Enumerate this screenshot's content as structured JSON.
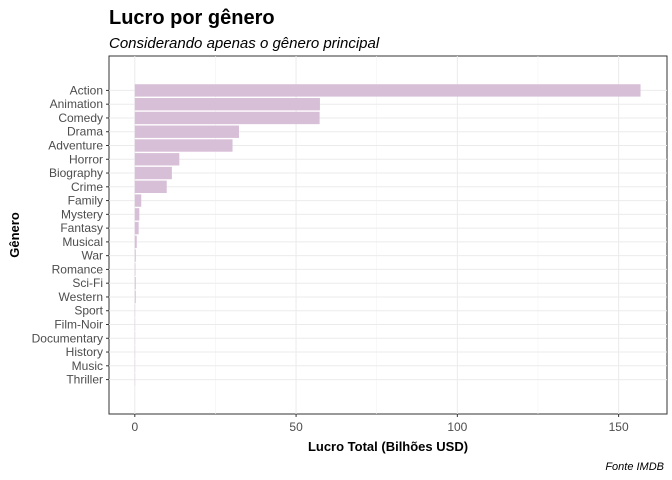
{
  "chart_data": {
    "type": "bar",
    "orientation": "horizontal",
    "title": "Lucro por gênero",
    "subtitle": "Considerando apenas o gênero principal",
    "xlabel": "Lucro Total (Bilhões USD)",
    "ylabel": "Gênero",
    "caption": "Fonte IMDB",
    "categories": [
      "Action",
      "Animation",
      "Comedy",
      "Drama",
      "Adventure",
      "Horror",
      "Biography",
      "Crime",
      "Family",
      "Mystery",
      "Fantasy",
      "Musical",
      "War",
      "Romance",
      "Sci-Fi",
      "Western",
      "Sport",
      "Film-Noir",
      "Documentary",
      "History",
      "Music",
      "Thriller"
    ],
    "values": [
      156.8,
      57.4,
      57.3,
      32.3,
      30.3,
      13.8,
      11.5,
      9.9,
      2.0,
      1.4,
      1.2,
      0.6,
      0.3,
      0.2,
      0.3,
      0.3,
      0.1,
      0.05,
      0.05,
      0.02,
      0.02,
      0.01
    ],
    "xlim": [
      -8,
      165
    ],
    "xticks": [
      0,
      50,
      100,
      150
    ],
    "grid": true,
    "bar_color": "#d8bfd8"
  }
}
